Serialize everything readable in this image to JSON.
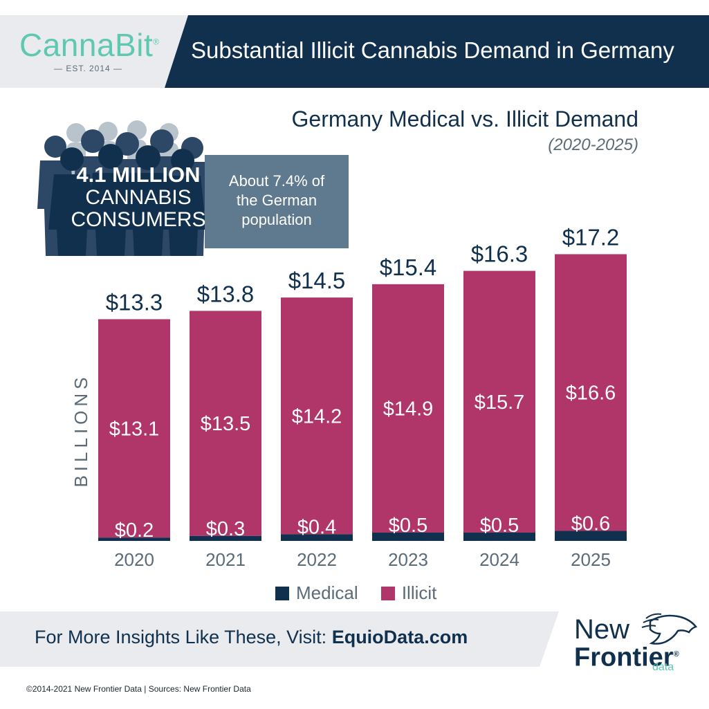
{
  "header": {
    "logo": "CannaBit",
    "logo_trademark": "®",
    "logo_est": "— EST. 2014 —",
    "title": "Substantial Illicit Cannabis Demand in Germany"
  },
  "stat": {
    "big_number": "4.1 MILLION",
    "line1": "CANNABIS",
    "line2": "CONSUMERS",
    "note_line1": "About 7.4% of",
    "note_line2": "the German",
    "note_line3": "population"
  },
  "colors": {
    "navy": "#10304e",
    "illicit": "#b03568",
    "teal": "#5fc8b0",
    "slate": "#5f7a8f"
  },
  "chart_data": {
    "type": "bar",
    "stacked": true,
    "title": "Germany Medical vs. Illicit Demand",
    "subtitle": "(2020-2025)",
    "ylabel": "BILLIONS",
    "categories": [
      "2020",
      "2021",
      "2022",
      "2023",
      "2024",
      "2025"
    ],
    "series": [
      {
        "name": "Medical",
        "color": "#10304e",
        "values": [
          0.2,
          0.3,
          0.4,
          0.5,
          0.5,
          0.6
        ],
        "labels": [
          "$0.2",
          "$0.3",
          "$0.4",
          "$0.5",
          "$0.5",
          "$0.6"
        ]
      },
      {
        "name": "Illicit",
        "color": "#b03568",
        "values": [
          13.1,
          13.5,
          14.2,
          14.9,
          15.7,
          16.6
        ],
        "labels": [
          "$13.1",
          "$13.5",
          "$14.2",
          "$14.9",
          "$15.7",
          "$16.6"
        ]
      }
    ],
    "totals": [
      13.3,
      13.8,
      14.5,
      15.4,
      16.3,
      17.2
    ],
    "total_labels": [
      "$13.3",
      "$13.8",
      "$14.5",
      "$15.4",
      "$16.3",
      "$17.2"
    ],
    "legend_position": "bottom",
    "grid": false
  },
  "footer": {
    "cta_prefix": "For More Insights Like These, Visit: ",
    "cta_link": "EquioData.com",
    "brand_new": "New",
    "brand_frontier": "Frontier",
    "brand_reg": "®",
    "brand_data": "data",
    "copyright": "©2014-2021  New Frontier Data | Sources: New Frontier Data"
  }
}
